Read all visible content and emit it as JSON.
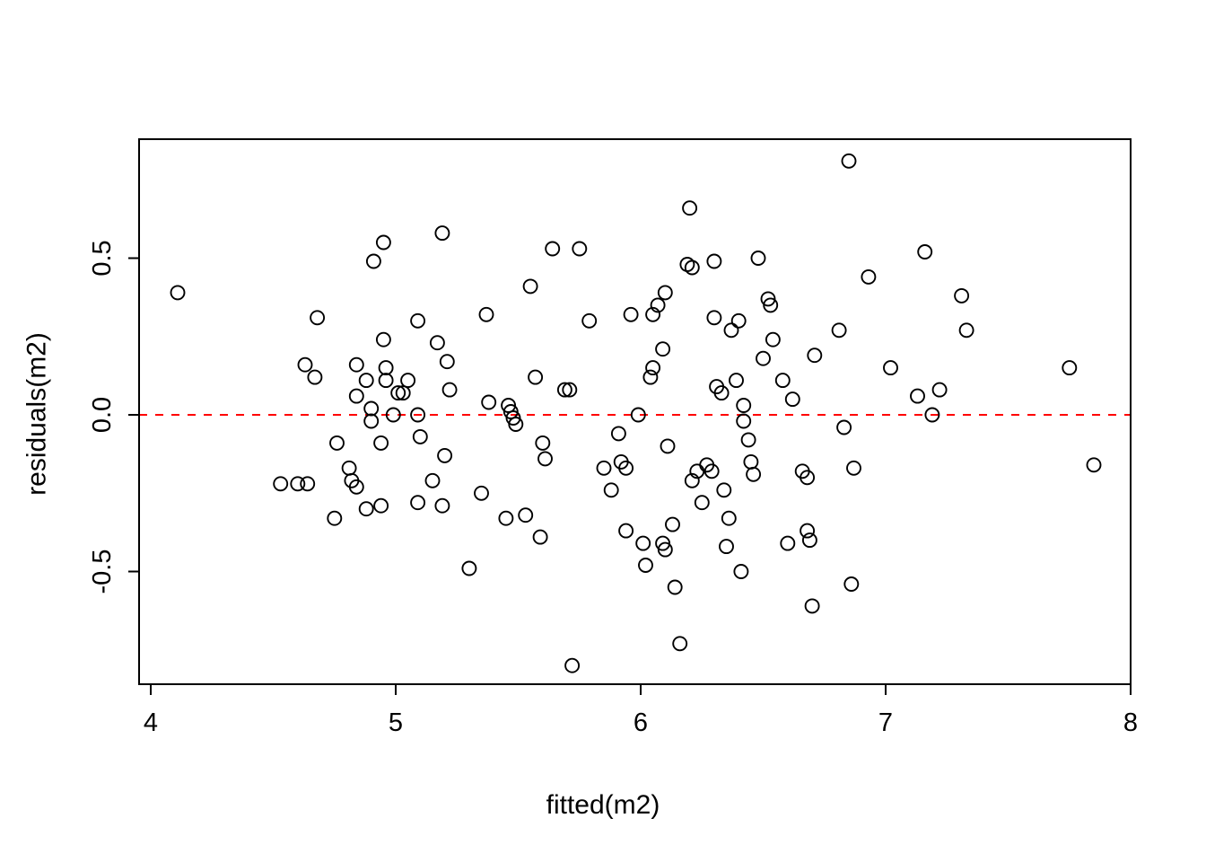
{
  "chart_data": {
    "type": "scatter",
    "title": "",
    "xlabel": "fitted(m2)",
    "ylabel": "residuals(m2)",
    "x_ticks": [
      4,
      5,
      6,
      7,
      8
    ],
    "x_tick_labels": [
      "4",
      "5",
      "6",
      "7",
      "8"
    ],
    "y_ticks": [
      -0.5,
      0.0,
      0.5
    ],
    "y_tick_labels": [
      "-0.5",
      "0.0",
      "0.5"
    ],
    "xlim": [
      3.95,
      8.0
    ],
    "ylim": [
      -0.88,
      0.88
    ],
    "grid": false,
    "legend": "none",
    "marker": {
      "shape": "open-circle",
      "color": "#000000"
    },
    "reference_line": {
      "y": 0,
      "color": "#ff0000",
      "style": "dashed"
    },
    "points": [
      [
        4.11,
        0.39
      ],
      [
        4.68,
        0.31
      ],
      [
        4.63,
        0.16
      ],
      [
        4.67,
        0.12
      ],
      [
        4.53,
        -0.22
      ],
      [
        4.6,
        -0.22
      ],
      [
        4.64,
        -0.22
      ],
      [
        4.75,
        -0.33
      ],
      [
        4.76,
        -0.09
      ],
      [
        4.81,
        -0.17
      ],
      [
        4.82,
        -0.21
      ],
      [
        4.84,
        -0.23
      ],
      [
        4.84,
        0.06
      ],
      [
        4.84,
        0.16
      ],
      [
        4.88,
        0.11
      ],
      [
        4.91,
        0.49
      ],
      [
        4.95,
        0.55
      ],
      [
        4.95,
        0.24
      ],
      [
        4.96,
        0.11
      ],
      [
        4.96,
        0.15
      ],
      [
        4.9,
        0.02
      ],
      [
        4.9,
        -0.02
      ],
      [
        4.94,
        -0.09
      ],
      [
        4.94,
        -0.29
      ],
      [
        4.88,
        -0.3
      ],
      [
        4.99,
        0.0
      ],
      [
        5.01,
        0.07
      ],
      [
        5.03,
        0.07
      ],
      [
        5.05,
        0.11
      ],
      [
        5.09,
        0.3
      ],
      [
        5.09,
        0.0
      ],
      [
        5.1,
        -0.07
      ],
      [
        5.09,
        -0.28
      ],
      [
        5.15,
        -0.21
      ],
      [
        5.17,
        0.23
      ],
      [
        5.19,
        0.58
      ],
      [
        5.21,
        0.17
      ],
      [
        5.22,
        0.08
      ],
      [
        5.2,
        -0.13
      ],
      [
        5.19,
        -0.29
      ],
      [
        5.3,
        -0.49
      ],
      [
        5.35,
        -0.25
      ],
      [
        5.37,
        0.32
      ],
      [
        5.38,
        0.04
      ],
      [
        5.46,
        0.03
      ],
      [
        5.47,
        0.01
      ],
      [
        5.48,
        -0.01
      ],
      [
        5.49,
        -0.03
      ],
      [
        5.45,
        -0.33
      ],
      [
        5.53,
        -0.32
      ],
      [
        5.55,
        0.41
      ],
      [
        5.57,
        0.12
      ],
      [
        5.59,
        -0.39
      ],
      [
        5.6,
        -0.09
      ],
      [
        5.61,
        -0.14
      ],
      [
        5.64,
        0.53
      ],
      [
        5.69,
        0.08
      ],
      [
        5.71,
        0.08
      ],
      [
        5.72,
        -0.8
      ],
      [
        5.75,
        0.53
      ],
      [
        5.79,
        0.3
      ],
      [
        5.85,
        -0.17
      ],
      [
        5.88,
        -0.24
      ],
      [
        5.91,
        -0.06
      ],
      [
        5.92,
        -0.15
      ],
      [
        5.94,
        -0.17
      ],
      [
        5.94,
        -0.37
      ],
      [
        5.96,
        0.32
      ],
      [
        5.99,
        0.0
      ],
      [
        6.01,
        -0.41
      ],
      [
        6.02,
        -0.48
      ],
      [
        6.04,
        0.12
      ],
      [
        6.05,
        0.15
      ],
      [
        6.05,
        0.32
      ],
      [
        6.07,
        0.35
      ],
      [
        6.09,
        0.21
      ],
      [
        6.09,
        -0.41
      ],
      [
        6.1,
        -0.43
      ],
      [
        6.1,
        0.39
      ],
      [
        6.11,
        -0.1
      ],
      [
        6.13,
        -0.35
      ],
      [
        6.14,
        -0.55
      ],
      [
        6.16,
        -0.73
      ],
      [
        6.2,
        0.66
      ],
      [
        6.19,
        0.48
      ],
      [
        6.21,
        0.47
      ],
      [
        6.21,
        -0.21
      ],
      [
        6.23,
        -0.18
      ],
      [
        6.25,
        -0.28
      ],
      [
        6.27,
        -0.16
      ],
      [
        6.29,
        -0.18
      ],
      [
        6.3,
        0.31
      ],
      [
        6.3,
        0.49
      ],
      [
        6.31,
        0.09
      ],
      [
        6.33,
        0.07
      ],
      [
        6.34,
        -0.24
      ],
      [
        6.35,
        -0.42
      ],
      [
        6.36,
        -0.33
      ],
      [
        6.37,
        0.27
      ],
      [
        6.39,
        0.11
      ],
      [
        6.4,
        0.3
      ],
      [
        6.41,
        -0.5
      ],
      [
        6.42,
        -0.02
      ],
      [
        6.42,
        0.03
      ],
      [
        6.44,
        -0.08
      ],
      [
        6.45,
        -0.15
      ],
      [
        6.46,
        -0.19
      ],
      [
        6.48,
        0.5
      ],
      [
        6.5,
        0.18
      ],
      [
        6.52,
        0.37
      ],
      [
        6.53,
        0.35
      ],
      [
        6.54,
        0.24
      ],
      [
        6.58,
        0.11
      ],
      [
        6.6,
        -0.41
      ],
      [
        6.62,
        0.05
      ],
      [
        6.66,
        -0.18
      ],
      [
        6.68,
        -0.2
      ],
      [
        6.68,
        -0.37
      ],
      [
        6.69,
        -0.4
      ],
      [
        6.7,
        -0.61
      ],
      [
        6.71,
        0.19
      ],
      [
        6.81,
        0.27
      ],
      [
        6.83,
        -0.04
      ],
      [
        6.85,
        0.81
      ],
      [
        6.86,
        -0.54
      ],
      [
        6.87,
        -0.17
      ],
      [
        6.93,
        0.44
      ],
      [
        7.02,
        0.15
      ],
      [
        7.13,
        0.06
      ],
      [
        7.16,
        0.52
      ],
      [
        7.19,
        0.0
      ],
      [
        7.22,
        0.08
      ],
      [
        7.31,
        0.38
      ],
      [
        7.33,
        0.27
      ],
      [
        7.75,
        0.15
      ],
      [
        7.85,
        -0.16
      ]
    ]
  }
}
